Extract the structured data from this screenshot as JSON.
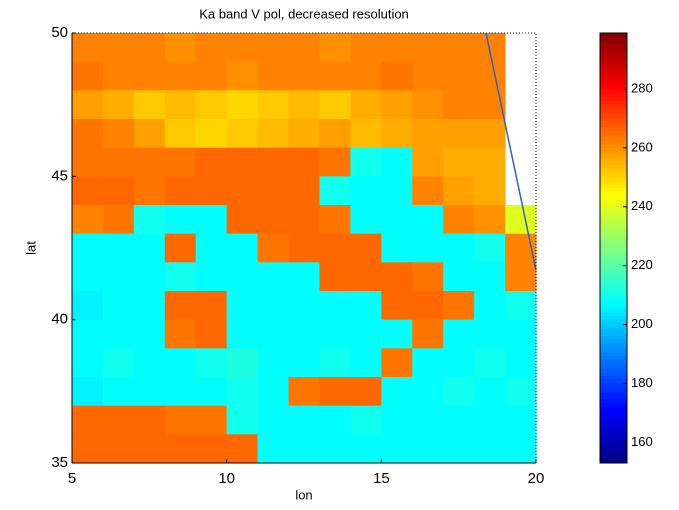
{
  "chart_data": {
    "type": "heatmap",
    "title": "Ka band V pol, decreased resolution",
    "xlabel": "lon",
    "ylabel": "lat",
    "xlim": [
      5,
      20
    ],
    "ylim": [
      35,
      50
    ],
    "xticks": [
      5,
      10,
      15,
      20
    ],
    "yticks": [
      35,
      40,
      45,
      50
    ],
    "colormap": "jet",
    "clim": [
      153,
      299
    ],
    "colorbar_ticks": [
      160,
      180,
      200,
      220,
      240,
      260,
      280
    ],
    "x": [
      5.5,
      6.5,
      7.5,
      8.5,
      9.5,
      10.5,
      11.5,
      12.5,
      13.5,
      14.5,
      15.5,
      16.5,
      17.5,
      18.5,
      19.5
    ],
    "y": [
      49.5,
      48.5,
      47.5,
      46.5,
      45.5,
      44.5,
      43.5,
      42.5,
      41.5,
      40.5,
      39.5,
      38.5,
      37.5,
      36.5,
      35.5
    ],
    "z": [
      [
        262,
        262,
        262,
        260,
        262,
        262,
        262,
        262,
        260,
        262,
        262,
        262,
        262,
        262,
        null
      ],
      [
        264,
        262,
        262,
        262,
        262,
        260,
        262,
        262,
        262,
        262,
        264,
        262,
        262,
        262,
        null
      ],
      [
        258,
        256,
        252,
        254,
        252,
        250,
        252,
        254,
        252,
        256,
        258,
        260,
        262,
        262,
        null
      ],
      [
        264,
        262,
        258,
        252,
        250,
        252,
        254,
        256,
        258,
        254,
        256,
        258,
        258,
        258,
        null
      ],
      [
        264,
        264,
        264,
        264,
        266,
        266,
        266,
        266,
        264,
        210,
        208,
        258,
        256,
        256,
        null
      ],
      [
        266,
        266,
        264,
        266,
        266,
        266,
        266,
        266,
        210,
        208,
        208,
        262,
        258,
        256,
        null
      ],
      [
        262,
        264,
        210,
        208,
        208,
        266,
        266,
        266,
        264,
        208,
        208,
        208,
        262,
        260,
        240
      ],
      [
        208,
        208,
        208,
        266,
        208,
        208,
        264,
        266,
        266,
        266,
        208,
        208,
        208,
        210,
        262
      ],
      [
        208,
        208,
        208,
        210,
        208,
        208,
        208,
        208,
        266,
        266,
        266,
        264,
        208,
        208,
        262
      ],
      [
        206,
        208,
        208,
        266,
        266,
        208,
        208,
        208,
        208,
        208,
        266,
        266,
        264,
        208,
        210
      ],
      [
        208,
        208,
        208,
        264,
        266,
        208,
        208,
        208,
        208,
        208,
        208,
        264,
        208,
        208,
        208
      ],
      [
        208,
        210,
        208,
        208,
        210,
        212,
        208,
        208,
        210,
        208,
        264,
        208,
        208,
        210,
        208
      ],
      [
        206,
        208,
        208,
        208,
        208,
        210,
        208,
        264,
        266,
        266,
        208,
        208,
        210,
        208,
        210
      ],
      [
        266,
        266,
        266,
        264,
        264,
        210,
        208,
        208,
        208,
        210,
        208,
        208,
        208,
        208,
        208
      ],
      [
        266,
        266,
        266,
        266,
        266,
        266,
        208,
        208,
        208,
        208,
        208,
        208,
        208,
        208,
        208
      ]
    ]
  }
}
